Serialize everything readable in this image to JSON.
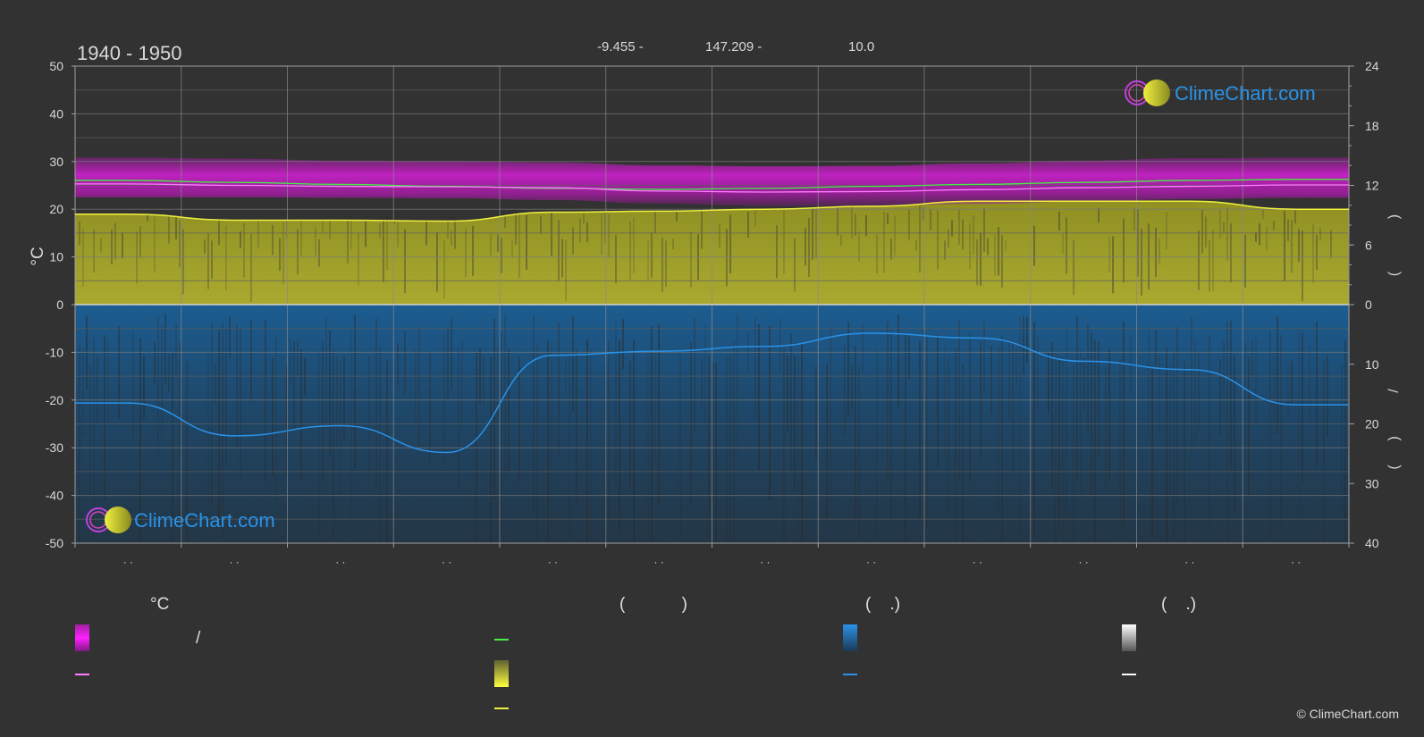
{
  "header": {
    "period": "1940 - 1950",
    "lat": "-9.455 -",
    "lon": "147.209 -",
    "elev": "10.0"
  },
  "watermark": "ClimeChart.com",
  "copyright": "© ClimeChart.com",
  "legend": {
    "col1_head": "°C",
    "col1_slash": "/",
    "col2_head": "(            )",
    "col3_head": "(    .)",
    "col4_head": "(    .)"
  },
  "colors": {
    "background": "#323232",
    "temp_band": "#d020d0",
    "temp_mean": "#ff7bff",
    "daylight": "#44ee44",
    "sunshine_fill": "#a4a42a",
    "sunshine_line": "#f0f040",
    "rain_fill": "#1b5f96",
    "rain_line": "#2a92e8",
    "grid": "#6a6a6a"
  },
  "chart_data": {
    "type": "line",
    "title": "1940 - 1950",
    "ylabel": "°C",
    "ylim": [
      -50,
      50
    ],
    "y_ticks": [
      "50",
      "40",
      "30",
      "20",
      "10",
      "0",
      "-10",
      "-20",
      "-30",
      "-40",
      "-50"
    ],
    "y2_upper_ticks": [
      "24",
      "18",
      "12",
      "6",
      "0"
    ],
    "y2_lower_ticks": [
      "0",
      "10",
      "20",
      "30",
      "40"
    ],
    "y2_upper_range": [
      0,
      24
    ],
    "y2_lower_range": [
      0,
      40
    ],
    "x_tick_labels": [
      "· ·",
      "· ·",
      "· ·",
      "· ·",
      "· ·",
      "· ·",
      "· ·",
      "· ·",
      "· ·",
      "· ·",
      "· ·",
      "· ·"
    ],
    "right_axis_glyphs": [
      ")",
      "(",
      "/",
      ")",
      "("
    ],
    "months": 12,
    "series": [
      {
        "key": "temp_max",
        "values": [
          29.6,
          29.4,
          29.0,
          28.9,
          28.6,
          28.0,
          27.8,
          27.9,
          28.4,
          29.0,
          29.5,
          29.6
        ]
      },
      {
        "key": "temp_min",
        "values": [
          24.0,
          24.0,
          23.9,
          23.8,
          23.4,
          22.7,
          22.2,
          22.2,
          22.6,
          23.1,
          23.6,
          23.9
        ]
      },
      {
        "key": "temp_mean",
        "values": [
          25.3,
          25.0,
          24.8,
          24.7,
          24.5,
          23.8,
          23.6,
          23.7,
          24.1,
          24.5,
          24.8,
          25.1
        ]
      },
      {
        "key": "daylight",
        "values": [
          12.5,
          12.3,
          12.1,
          11.9,
          11.7,
          11.6,
          11.7,
          11.9,
          12.1,
          12.3,
          12.5,
          12.6
        ]
      },
      {
        "key": "sunshine",
        "values": [
          9.1,
          8.5,
          8.5,
          8.4,
          9.3,
          9.4,
          9.6,
          9.9,
          10.4,
          10.4,
          10.4,
          9.6
        ]
      },
      {
        "key": "precipitation",
        "values": [
          16.5,
          22.0,
          20.3,
          24.8,
          8.5,
          7.8,
          7.0,
          4.8,
          5.6,
          9.5,
          10.9,
          16.8
        ]
      }
    ]
  }
}
